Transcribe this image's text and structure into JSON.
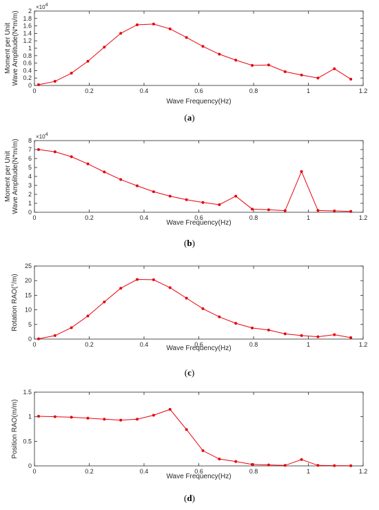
{
  "charts": [
    {
      "id": "a",
      "panel_label": "a",
      "xlabel": "Wave Frequency(Hz)",
      "ylabel_lines": [
        "Moment per Unit",
        "Wave Amplitude(N*m/m)"
      ],
      "exponent_base": "×10",
      "exponent_power": "4",
      "xticks": [
        "0",
        "0.2",
        "0.4",
        "0.6",
        "0.8",
        "1",
        "1.2"
      ],
      "yticks": [
        "0",
        "0.2",
        "0.4",
        "0.6",
        "0.8",
        "1",
        "1.2",
        "1.4",
        "1.6",
        "1.8",
        "2"
      ]
    },
    {
      "id": "b",
      "panel_label": "b",
      "xlabel": "Wave Frequency(Hz)",
      "ylabel_lines": [
        "Moment per Unit",
        "Wave Amplitude(N*m/m)"
      ],
      "exponent_base": "×10",
      "exponent_power": "4",
      "xticks": [
        "0",
        "0.2",
        "0.4",
        "0.6",
        "0.8",
        "1",
        "1.2"
      ],
      "yticks": [
        "0",
        "1",
        "2",
        "3",
        "4",
        "5",
        "6",
        "7",
        "8"
      ]
    },
    {
      "id": "c",
      "panel_label": "c",
      "xlabel": "Wave Frequency(Hz)",
      "ylabel_lines": [
        "Rotation RAO(°/m)"
      ],
      "xticks": [
        "0",
        "0.2",
        "0.4",
        "0.6",
        "0.8",
        "1",
        "1.2"
      ],
      "yticks": [
        "0",
        "5",
        "10",
        "15",
        "20",
        "25"
      ]
    },
    {
      "id": "d",
      "panel_label": "d",
      "xlabel": "Wave Frequency(Hz)",
      "ylabel_lines": [
        "Position RAO(m/m)"
      ],
      "xticks": [
        "0",
        "0.2",
        "0.4",
        "0.6",
        "0.8",
        "1",
        "1.2"
      ],
      "yticks": [
        "0",
        "0.5",
        "1",
        "1.5"
      ]
    }
  ],
  "colors": {
    "series": "#e8000b",
    "axis": "#262626"
  },
  "chart_data": [
    {
      "type": "line",
      "xlim": [
        0,
        1.2
      ],
      "ylim": [
        0,
        2
      ],
      "grid": false,
      "x": [
        0.015,
        0.075,
        0.135,
        0.195,
        0.255,
        0.315,
        0.375,
        0.435,
        0.495,
        0.555,
        0.615,
        0.675,
        0.735,
        0.795,
        0.855,
        0.915,
        0.975,
        1.035,
        1.095,
        1.155
      ],
      "series": [
        {
          "values": [
            0.02,
            0.11,
            0.33,
            0.65,
            1.03,
            1.4,
            1.63,
            1.65,
            1.52,
            1.29,
            1.05,
            0.84,
            0.68,
            0.54,
            0.55,
            0.37,
            0.28,
            0.2,
            0.45,
            0.17
          ]
        }
      ]
    },
    {
      "type": "line",
      "xlim": [
        0,
        1.2
      ],
      "ylim": [
        0,
        8
      ],
      "grid": false,
      "x": [
        0.015,
        0.075,
        0.135,
        0.195,
        0.255,
        0.315,
        0.375,
        0.435,
        0.495,
        0.555,
        0.615,
        0.675,
        0.735,
        0.795,
        0.855,
        0.915,
        0.975,
        1.035,
        1.095,
        1.155
      ],
      "series": [
        {
          "values": [
            7.0,
            6.75,
            6.2,
            5.4,
            4.5,
            3.65,
            2.95,
            2.3,
            1.8,
            1.4,
            1.1,
            0.85,
            1.8,
            0.35,
            0.28,
            0.18,
            4.55,
            0.2,
            0.15,
            0.1
          ]
        }
      ]
    },
    {
      "type": "line",
      "xlim": [
        0,
        1.2
      ],
      "ylim": [
        0,
        25
      ],
      "grid": false,
      "x": [
        0.015,
        0.075,
        0.135,
        0.195,
        0.255,
        0.315,
        0.375,
        0.435,
        0.495,
        0.555,
        0.615,
        0.675,
        0.735,
        0.795,
        0.855,
        0.915,
        0.975,
        1.035,
        1.095,
        1.155
      ],
      "series": [
        {
          "values": [
            0.1,
            1.2,
            3.9,
            7.9,
            12.7,
            17.4,
            20.4,
            20.3,
            17.6,
            14.0,
            10.4,
            7.6,
            5.4,
            3.8,
            3.1,
            1.8,
            1.2,
            0.8,
            1.5,
            0.5
          ]
        }
      ]
    },
    {
      "type": "line",
      "xlim": [
        0,
        1.2
      ],
      "ylim": [
        0,
        1.5
      ],
      "grid": false,
      "x": [
        0.015,
        0.075,
        0.135,
        0.195,
        0.255,
        0.315,
        0.375,
        0.435,
        0.495,
        0.555,
        0.615,
        0.675,
        0.735,
        0.795,
        0.855,
        0.915,
        0.975,
        1.035,
        1.095,
        1.155
      ],
      "series": [
        {
          "values": [
            1.01,
            1.0,
            0.99,
            0.97,
            0.95,
            0.93,
            0.95,
            1.03,
            1.15,
            0.74,
            0.31,
            0.14,
            0.09,
            0.03,
            0.02,
            0.01,
            0.13,
            0.01,
            0.005,
            0.003
          ]
        }
      ]
    }
  ]
}
